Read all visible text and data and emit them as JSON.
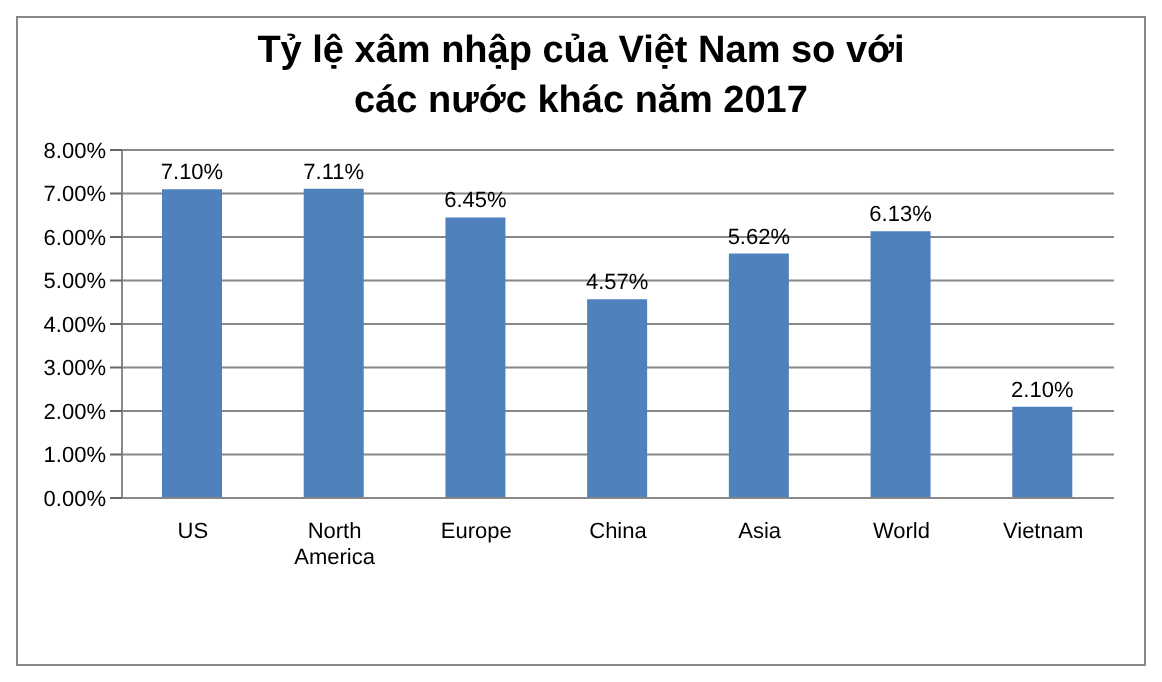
{
  "chart_data": {
    "type": "bar",
    "title": "Tỷ lệ xâm nhập của Việt Nam so với các nước khác năm 2017",
    "categories": [
      "US",
      "North America",
      "Europe",
      "China",
      "Asia",
      "World",
      "Vietnam"
    ],
    "values": [
      7.1,
      7.11,
      6.45,
      4.57,
      5.62,
      6.13,
      2.1
    ],
    "value_labels": [
      "7.10%",
      "7.11%",
      "6.45%",
      "4.57%",
      "5.62%",
      "6.13%",
      "2.10%"
    ],
    "color": "#4f81bd",
    "ylim": [
      0,
      8
    ],
    "yticks": [
      {
        "value": 0,
        "label": "0.00%"
      },
      {
        "value": 1,
        "label": "1.00%"
      },
      {
        "value": 2,
        "label": "2.00%"
      },
      {
        "value": 3,
        "label": "3.00%"
      },
      {
        "value": 4,
        "label": "4.00%"
      },
      {
        "value": 5,
        "label": "5.00%"
      },
      {
        "value": 6,
        "label": "6.00%"
      },
      {
        "value": 7,
        "label": "7.00%"
      },
      {
        "value": 8,
        "label": "8.00%"
      }
    ],
    "grid": "y"
  }
}
